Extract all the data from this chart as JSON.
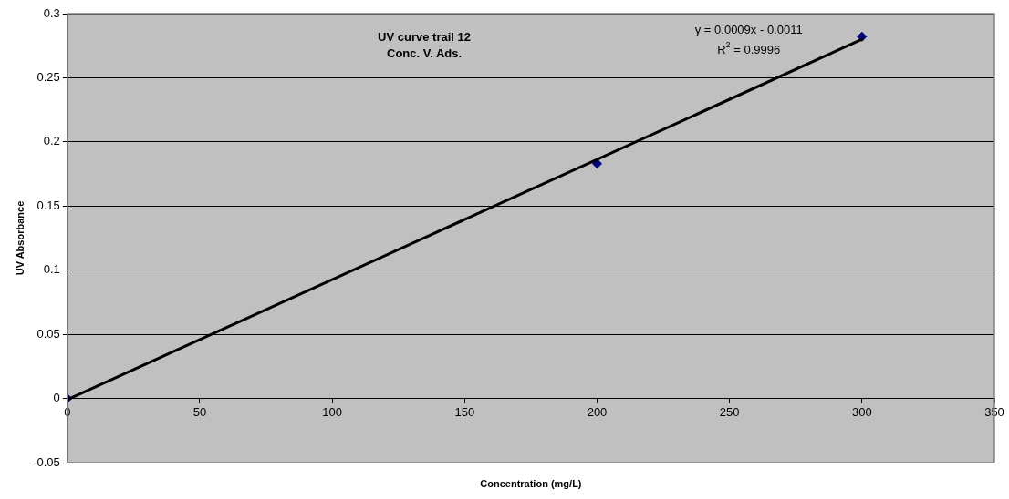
{
  "chart_data": {
    "type": "scatter",
    "title": "UV curve trail 12",
    "subtitle": "Conc. V. Ads.",
    "xlabel": "Concentration (mg/L)",
    "ylabel": "UV Absorbance",
    "annotations": [
      "y = 0.0009x - 0.0011",
      "R$^{2}$ = 0.9996"
    ],
    "series": [
      {
        "color": "#000080",
        "marker": "diamond",
        "x": [
          0,
          200,
          300
        ],
        "values": [
          0,
          0.183,
          0.282
        ]
      },
      {
        "type": "line",
        "color": "#000000",
        "marker": "none",
        "x": [
          0,
          300
        ],
        "values": [
          -0.001,
          0.28
        ]
      }
    ],
    "xlim": [
      0,
      350
    ],
    "xticks": [
      0,
      50,
      100,
      150,
      200,
      250,
      300,
      350
    ],
    "ylim": [
      -0.05,
      0.3
    ],
    "yticks": [
      -0.05,
      0,
      0.05,
      0.1,
      0.15,
      0.2,
      0.25,
      0.3
    ],
    "grid": "y",
    "legend": false
  }
}
